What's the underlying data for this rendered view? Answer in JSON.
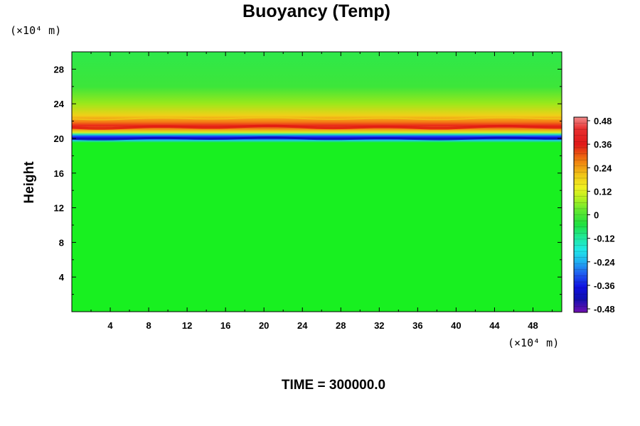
{
  "chart_data": {
    "type": "heatmap",
    "title": "Buoyancy (Temp)",
    "ylabel": "Height",
    "x_unit": "(×10⁴ m)",
    "y_unit": "(×10⁴ m)",
    "xlim": [
      0,
      51
    ],
    "ylim": [
      0,
      30
    ],
    "x_ticks": [
      4,
      8,
      12,
      16,
      20,
      24,
      28,
      32,
      36,
      40,
      44,
      48
    ],
    "y_ticks": [
      4,
      8,
      12,
      16,
      20,
      24,
      28
    ],
    "colorbar": {
      "range": [
        -0.48,
        0.48
      ],
      "ticks": [
        "0.48",
        "0.36",
        "0.24",
        "0.12",
        "0",
        "-0.12",
        "-0.24",
        "-0.36",
        "-0.48"
      ]
    },
    "background_value": 0,
    "bands": [
      {
        "height": 20.0,
        "value": -0.42
      },
      {
        "height": 20.5,
        "value": -0.15
      },
      {
        "height": 21.3,
        "value": 0.4
      },
      {
        "height": 22.3,
        "value": 0.15
      },
      {
        "height": 23.0,
        "value": 0.06
      }
    ],
    "grid": false
  },
  "footer": {
    "time_label": "TIME = 300000.0"
  }
}
